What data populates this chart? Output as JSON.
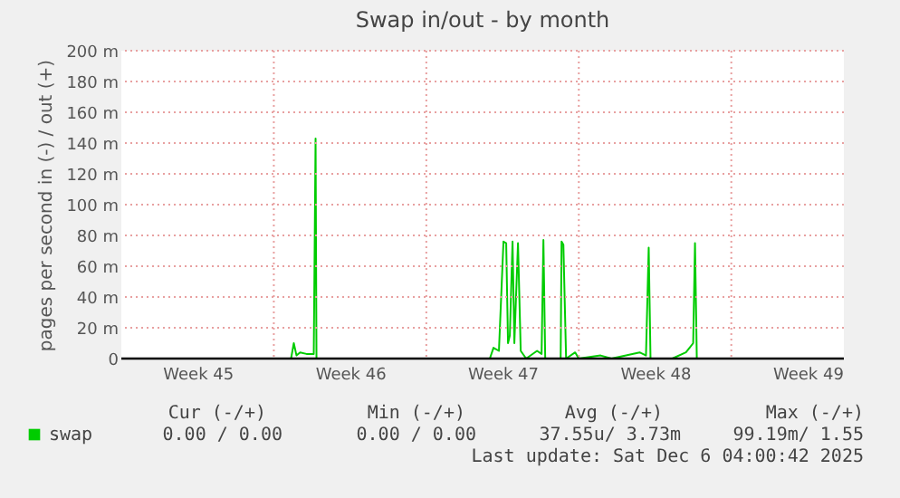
{
  "chart_data": {
    "type": "line",
    "title": "Swap in/out - by month",
    "ylabel": "pages per second in (-) / out (+)",
    "x": [
      "2025-11-03T00:00",
      "2025-11-10T19:00",
      "2025-11-10T22:00",
      "2025-11-11T01:00",
      "2025-11-11T05:00",
      "2025-11-11T12:00",
      "2025-11-11T20:00",
      "2025-11-11T22:00",
      "2025-11-11T23:00",
      "2025-11-17T00:00",
      "2025-11-19T22:00",
      "2025-11-20T02:00",
      "2025-11-20T08:00",
      "2025-11-20T13:00",
      "2025-11-20T16:00",
      "2025-11-20T18:00",
      "2025-11-20T20:00",
      "2025-11-20T23:00",
      "2025-11-21T01:00",
      "2025-11-21T05:00",
      "2025-11-21T08:00",
      "2025-11-21T14:00",
      "2025-11-22T02:00",
      "2025-11-22T07:00",
      "2025-11-22T09:00",
      "2025-11-22T11:00",
      "2025-11-23T04:00",
      "2025-11-23T05:00",
      "2025-11-23T07:00",
      "2025-11-23T10:00",
      "2025-11-23T20:00",
      "2025-11-24T00:00",
      "2025-11-25T00:00",
      "2025-11-25T12:00",
      "2025-11-26T19:00",
      "2025-11-27T02:00",
      "2025-11-27T05:00",
      "2025-11-27T07:00",
      "2025-11-28T07:00",
      "2025-11-28T22:00",
      "2025-11-29T06:00",
      "2025-11-29T08:00",
      "2025-11-29T10:00",
      "2025-12-06T04:00"
    ],
    "series": [
      {
        "name": "swap",
        "color": "#00cc00",
        "values": [
          0,
          0,
          10,
          2,
          4,
          3,
          3,
          143,
          0,
          0,
          0,
          7,
          5,
          76,
          75,
          10,
          15,
          76,
          10,
          75,
          5,
          0,
          5,
          3,
          77,
          0,
          0,
          76,
          74,
          0,
          4,
          0,
          2,
          0,
          4,
          2,
          72,
          0,
          0,
          4,
          10,
          75,
          0,
          0
        ]
      }
    ],
    "xlim": [
      "2025-11-03T00:00",
      "2025-12-06T04:00"
    ],
    "xticks": [
      {
        "value": "2025-11-06T12:00",
        "label": "Week 45"
      },
      {
        "value": "2025-11-10",
        "label": null
      },
      {
        "value": "2025-11-13T12:00",
        "label": "Week 46"
      },
      {
        "value": "2025-11-17",
        "label": null
      },
      {
        "value": "2025-11-20T12:00",
        "label": "Week 47"
      },
      {
        "value": "2025-11-24",
        "label": null
      },
      {
        "value": "2025-11-27T12:00",
        "label": "Week 48"
      },
      {
        "value": "2025-12-01",
        "label": null
      },
      {
        "value": "2025-12-04T12:00",
        "label": "Week 49"
      }
    ],
    "ylim": [
      0,
      200
    ],
    "yticks": [
      0,
      {
        "value": 20,
        "label": "20 m"
      },
      {
        "value": 40,
        "label": "40 m"
      },
      {
        "value": 60,
        "label": "60 m"
      },
      {
        "value": 80,
        "label": "80 m"
      },
      {
        "value": 100,
        "label": "100 m"
      },
      {
        "value": 120,
        "label": "120 m"
      },
      {
        "value": 140,
        "label": "140 m"
      },
      {
        "value": 160,
        "label": "160 m"
      },
      {
        "value": 180,
        "label": "180 m"
      },
      {
        "value": 200,
        "label": "200 m"
      }
    ],
    "grid": true,
    "legend": "bottom",
    "marker": "none",
    "line_style": "solid",
    "annotations": [
      "Cur (-/+)",
      "Min (-/+)",
      "Avg (-/+)",
      "Max (-/+)",
      "0.00 /  0.00",
      "0.00 /  0.00",
      "37.55u/  3.73m",
      "99.19m/  1.55",
      "Last update: Sat Dec  6 04:00:42 2025"
    ]
  }
}
